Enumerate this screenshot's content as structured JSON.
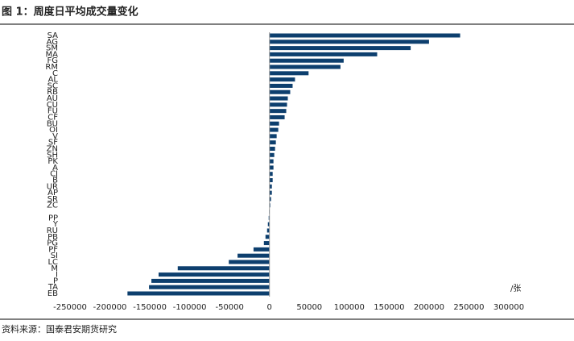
{
  "chart_data": {
    "type": "hbar",
    "title": "图 1：周度日平均成交量变化",
    "source": "资料来源：国泰君安期货研究",
    "unit": "/张",
    "categories": [
      "SA",
      "AG",
      "SM",
      "MA",
      "FG",
      "RM",
      "C",
      "AL",
      "SC",
      "RB",
      "AU",
      "CU",
      "FU",
      "CF",
      "BU",
      "OI",
      "V",
      "SF",
      "ZN",
      "SH",
      "PK",
      "A",
      "CJ",
      "B",
      "UR",
      "AP",
      "SR",
      "ZC",
      null,
      "PP",
      "Y",
      "RU",
      "PB",
      "PG",
      "PF",
      "SI",
      "LC",
      "M",
      "I",
      "P",
      "TA",
      "EB"
    ],
    "values": [
      239000,
      200000,
      177000,
      135000,
      93000,
      89000,
      49000,
      32000,
      29000,
      26000,
      23000,
      22000,
      21000,
      19000,
      12000,
      11000,
      9000,
      8000,
      7000,
      6000,
      5000,
      5000,
      4000,
      4000,
      3000,
      3000,
      2000,
      1000,
      -500,
      -1000,
      -2000,
      -3000,
      -5000,
      -7000,
      -20000,
      -40000,
      -51000,
      -115000,
      -139000,
      -148000,
      -151000,
      -178000
    ],
    "color": "#0d3f6e",
    "xlim": [
      -250000,
      300000
    ],
    "xticks": [
      -250000,
      -200000,
      -150000,
      -100000,
      -50000,
      0,
      50000,
      100000,
      150000,
      200000,
      250000,
      300000
    ]
  }
}
